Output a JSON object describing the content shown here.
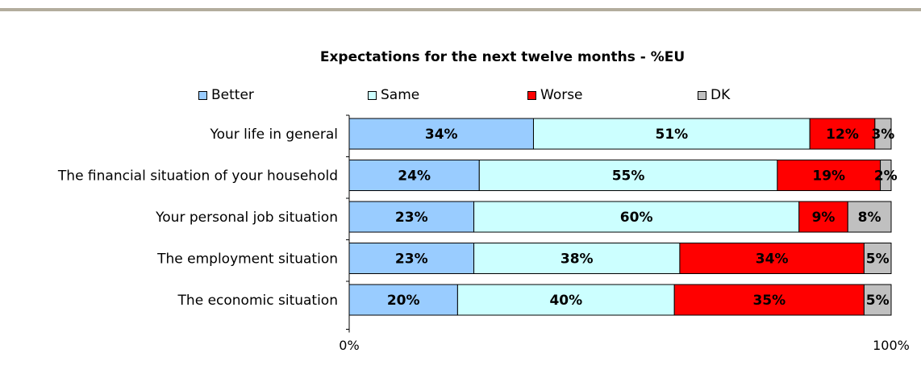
{
  "chart_data": {
    "type": "bar",
    "orientation": "horizontal",
    "stacked": "percent",
    "title": "Expectations for the next twelve months - %EU",
    "categories": [
      "Your life in general",
      "The financial situation of your household",
      "Your personal job situation",
      "The employment situation",
      "The economic situation"
    ],
    "series": [
      {
        "name": "Better",
        "color": "#99ccff",
        "values": [
          34,
          24,
          23,
          23,
          20
        ],
        "labels": [
          "34%",
          "24%",
          "23%",
          "23%",
          "20%"
        ]
      },
      {
        "name": "Same",
        "color": "#ccffff",
        "values": [
          51,
          55,
          60,
          38,
          40
        ],
        "labels": [
          "51%",
          "55%",
          "60%",
          "38%",
          "40%"
        ]
      },
      {
        "name": "Worse",
        "color": "#ff0000",
        "values": [
          12,
          19,
          9,
          34,
          35
        ],
        "labels": [
          "12%",
          "19%",
          "9%",
          "34%",
          "35%"
        ]
      },
      {
        "name": "DK",
        "color": "#c0c0c0",
        "values": [
          3,
          2,
          8,
          5,
          5
        ],
        "labels": [
          "3%",
          "2%",
          "8%",
          "5%",
          "5%"
        ]
      }
    ],
    "xlim": [
      0,
      100
    ],
    "xticks": [
      "0%",
      "100%"
    ],
    "legend_position": "top",
    "grid": false
  }
}
